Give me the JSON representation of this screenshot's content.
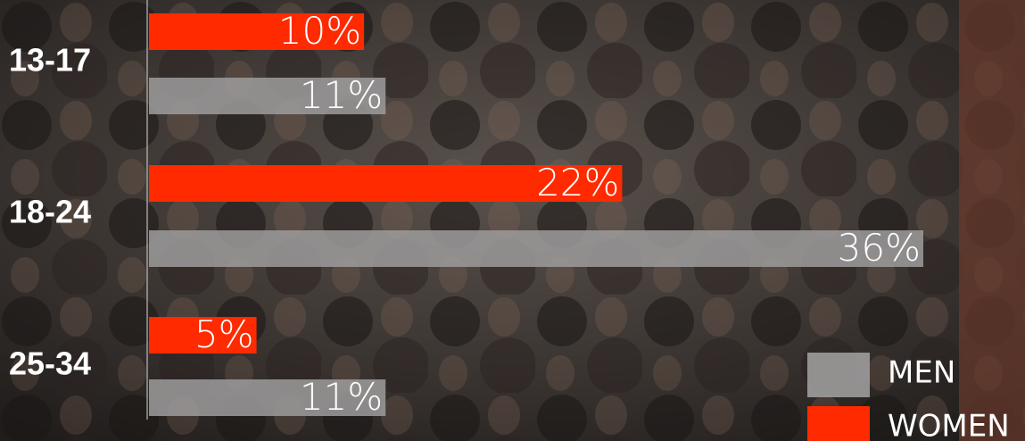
{
  "chart_data": {
    "type": "bar",
    "orientation": "horizontal",
    "categories": [
      "13-17",
      "18-24",
      "25-34"
    ],
    "series": [
      {
        "name": "MEN",
        "color": "#9e9c9c",
        "values": [
          11,
          36,
          11
        ],
        "value_labels": [
          "11%",
          "36%",
          "11%"
        ]
      },
      {
        "name": "WOMEN",
        "color": "#ff2a00",
        "values": [
          10,
          22,
          5
        ],
        "value_labels": [
          "10%",
          "22%",
          "5%"
        ]
      }
    ]
  }
}
